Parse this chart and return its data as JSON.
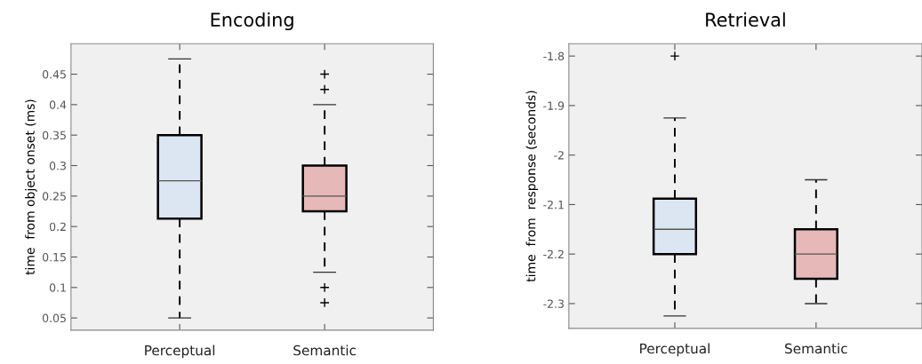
{
  "chart_data": [
    {
      "type": "box",
      "title": "Encoding",
      "ylabel": "time  from object onset (ms)",
      "categories": [
        "Perceptual",
        "Semantic"
      ],
      "colors": [
        "#dce6f2",
        "#e6b9b8"
      ],
      "boxes": [
        {
          "low": 0.05,
          "q1": 0.213,
          "median": 0.275,
          "q3": 0.35,
          "high": 0.475
        },
        {
          "low": 0.125,
          "q1": 0.225,
          "median": 0.25,
          "q3": 0.3,
          "high": 0.4,
          "outliers": [
            0.45,
            0.425,
            0.1,
            0.075
          ]
        }
      ],
      "ylim": [
        0.03,
        0.5
      ],
      "yticks": [
        0.05,
        0.1,
        0.15,
        0.2,
        0.25,
        0.3,
        0.35,
        0.4,
        0.45
      ],
      "grid": false,
      "line_style": "dashed",
      "marker": "cross"
    },
    {
      "type": "box",
      "title": "Retrieval",
      "ylabel": "time  from  response (seconds)",
      "categories": [
        "Perceptual",
        "Semantic"
      ],
      "colors": [
        "#dce6f2",
        "#e6b9b8"
      ],
      "boxes": [
        {
          "low": -2.325,
          "q1": -2.2,
          "median": -2.15,
          "q3": -2.088,
          "high": -1.925,
          "outliers": [
            -1.8
          ]
        },
        {
          "low": -2.3,
          "q1": -2.25,
          "median": -2.2,
          "q3": -2.15,
          "high": -2.05
        }
      ],
      "ylim": [
        -2.35,
        -1.775
      ],
      "yticks": [
        -2.3,
        -2.2,
        -2.1,
        -2,
        -1.9,
        -1.8
      ],
      "grid": false,
      "line_style": "dashed",
      "marker": "cross"
    }
  ]
}
